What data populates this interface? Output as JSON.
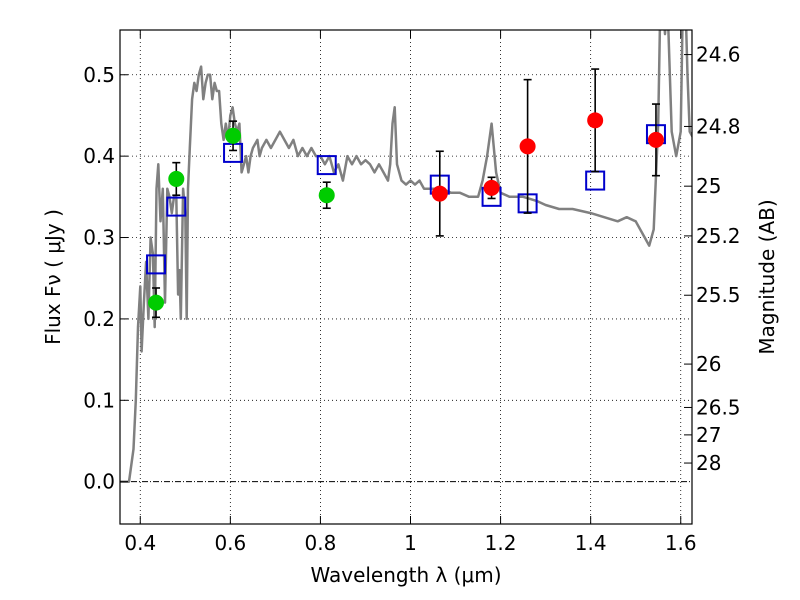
{
  "chart_data": {
    "type": "scatter",
    "xlabel": "Wavelength  λ (μm)",
    "ylabel": "Flux  Fν  ( μJy )",
    "y2label": "Magnitude (AB)",
    "xlim": [
      0.355,
      1.625
    ],
    "ylim": [
      -0.052,
      0.555
    ],
    "grid": true,
    "x_ticks": [
      0.4,
      0.6,
      0.8,
      1.0,
      1.2,
      1.4,
      1.6
    ],
    "x_tick_labels": [
      "0.4",
      "0.6",
      "0.8",
      "1",
      "1.2",
      "1.4",
      "1.6"
    ],
    "y_ticks": [
      0.0,
      0.1,
      0.2,
      0.3,
      0.4,
      0.5
    ],
    "y_tick_labels": [
      "0.0",
      "0.1",
      "0.2",
      "0.3",
      "0.4",
      "0.5"
    ],
    "mag_ticks": [
      {
        "label": "24.6",
        "flux": 0.5248
      },
      {
        "label": "24.8",
        "flux": 0.4365
      },
      {
        "label": "25",
        "flux": 0.3631
      },
      {
        "label": "25.2",
        "flux": 0.302
      },
      {
        "label": "25.5",
        "flux": 0.2291
      },
      {
        "label": "26",
        "flux": 0.1445
      },
      {
        "label": "26.5",
        "flux": 0.0912
      },
      {
        "label": "27",
        "flux": 0.0575
      },
      {
        "label": "28",
        "flux": 0.0229
      }
    ],
    "series": [
      {
        "name": "model spectrum",
        "kind": "line",
        "color": "#808080",
        "points": [
          [
            0.35,
            0
          ],
          [
            0.375,
            0
          ],
          [
            0.385,
            0.04
          ],
          [
            0.39,
            0.1
          ],
          [
            0.395,
            0.19
          ],
          [
            0.4,
            0.24
          ],
          [
            0.403,
            0.16
          ],
          [
            0.408,
            0.22
          ],
          [
            0.413,
            0.27
          ],
          [
            0.418,
            0.2
          ],
          [
            0.423,
            0.3
          ],
          [
            0.428,
            0.28
          ],
          [
            0.432,
            0.19
          ],
          [
            0.436,
            0.36
          ],
          [
            0.44,
            0.39
          ],
          [
            0.445,
            0.32
          ],
          [
            0.45,
            0.36
          ],
          [
            0.455,
            0.22
          ],
          [
            0.46,
            0.36
          ],
          [
            0.465,
            0.35
          ],
          [
            0.47,
            0.33
          ],
          [
            0.475,
            0.35
          ],
          [
            0.48,
            0.35
          ],
          [
            0.484,
            0.23
          ],
          [
            0.487,
            0.26
          ],
          [
            0.49,
            0.2
          ],
          [
            0.495,
            0.36
          ],
          [
            0.5,
            0.33
          ],
          [
            0.503,
            0.2
          ],
          [
            0.506,
            0.36
          ],
          [
            0.51,
            0.41
          ],
          [
            0.515,
            0.47
          ],
          [
            0.52,
            0.49
          ],
          [
            0.525,
            0.48
          ],
          [
            0.53,
            0.5
          ],
          [
            0.535,
            0.51
          ],
          [
            0.54,
            0.47
          ],
          [
            0.545,
            0.49
          ],
          [
            0.55,
            0.5
          ],
          [
            0.555,
            0.5
          ],
          [
            0.56,
            0.47
          ],
          [
            0.565,
            0.49
          ],
          [
            0.57,
            0.48
          ],
          [
            0.575,
            0.48
          ],
          [
            0.58,
            0.44
          ],
          [
            0.585,
            0.42
          ],
          [
            0.59,
            0.44
          ],
          [
            0.595,
            0.42
          ],
          [
            0.6,
            0.45
          ],
          [
            0.605,
            0.46
          ],
          [
            0.61,
            0.44
          ],
          [
            0.615,
            0.43
          ],
          [
            0.62,
            0.44
          ],
          [
            0.625,
            0.38
          ],
          [
            0.63,
            0.39
          ],
          [
            0.635,
            0.4
          ],
          [
            0.64,
            0.38
          ],
          [
            0.645,
            0.4
          ],
          [
            0.65,
            0.41
          ],
          [
            0.66,
            0.42
          ],
          [
            0.665,
            0.4
          ],
          [
            0.67,
            0.41
          ],
          [
            0.68,
            0.42
          ],
          [
            0.69,
            0.41
          ],
          [
            0.7,
            0.42
          ],
          [
            0.71,
            0.43
          ],
          [
            0.72,
            0.42
          ],
          [
            0.73,
            0.41
          ],
          [
            0.74,
            0.42
          ],
          [
            0.75,
            0.4
          ],
          [
            0.76,
            0.41
          ],
          [
            0.77,
            0.4
          ],
          [
            0.78,
            0.41
          ],
          [
            0.79,
            0.4
          ],
          [
            0.8,
            0.4
          ],
          [
            0.81,
            0.39
          ],
          [
            0.82,
            0.4
          ],
          [
            0.83,
            0.38
          ],
          [
            0.84,
            0.39
          ],
          [
            0.85,
            0.37
          ],
          [
            0.86,
            0.4
          ],
          [
            0.87,
            0.39
          ],
          [
            0.88,
            0.4
          ],
          [
            0.89,
            0.39
          ],
          [
            0.9,
            0.395
          ],
          [
            0.91,
            0.39
          ],
          [
            0.92,
            0.38
          ],
          [
            0.93,
            0.39
          ],
          [
            0.94,
            0.38
          ],
          [
            0.95,
            0.37
          ],
          [
            0.955,
            0.39
          ],
          [
            0.96,
            0.44
          ],
          [
            0.965,
            0.46
          ],
          [
            0.97,
            0.39
          ],
          [
            0.98,
            0.37
          ],
          [
            0.99,
            0.365
          ],
          [
            1.0,
            0.37
          ],
          [
            1.01,
            0.365
          ],
          [
            1.02,
            0.37
          ],
          [
            1.03,
            0.36
          ],
          [
            1.05,
            0.36
          ],
          [
            1.07,
            0.36
          ],
          [
            1.09,
            0.355
          ],
          [
            1.11,
            0.355
          ],
          [
            1.13,
            0.35
          ],
          [
            1.15,
            0.35
          ],
          [
            1.16,
            0.37
          ],
          [
            1.17,
            0.4
          ],
          [
            1.18,
            0.44
          ],
          [
            1.19,
            0.38
          ],
          [
            1.2,
            0.355
          ],
          [
            1.22,
            0.35
          ],
          [
            1.25,
            0.35
          ],
          [
            1.28,
            0.345
          ],
          [
            1.3,
            0.34
          ],
          [
            1.33,
            0.335
          ],
          [
            1.36,
            0.335
          ],
          [
            1.4,
            0.33
          ],
          [
            1.43,
            0.325
          ],
          [
            1.46,
            0.32
          ],
          [
            1.48,
            0.325
          ],
          [
            1.5,
            0.32
          ],
          [
            1.52,
            0.3
          ],
          [
            1.53,
            0.29
          ],
          [
            1.54,
            0.31
          ],
          [
            1.55,
            0.44
          ],
          [
            1.555,
            0.6
          ],
          [
            1.56,
            0.6
          ],
          [
            1.565,
            0.55
          ],
          [
            1.57,
            0.6
          ],
          [
            1.58,
            0.43
          ],
          [
            1.59,
            0.4
          ],
          [
            1.6,
            0.43
          ],
          [
            1.605,
            0.6
          ],
          [
            1.61,
            0.6
          ],
          [
            1.615,
            0.5
          ],
          [
            1.62,
            0.43
          ],
          [
            1.63,
            0.42
          ]
        ]
      },
      {
        "name": "green points",
        "kind": "points",
        "color": "#00cc00",
        "points": [
          {
            "x": 0.435,
            "y": 0.22,
            "err": 0.018
          },
          {
            "x": 0.48,
            "y": 0.372,
            "err": 0.02
          },
          {
            "x": 0.606,
            "y": 0.425,
            "err": 0.018
          },
          {
            "x": 0.814,
            "y": 0.352,
            "err": 0.016
          }
        ]
      },
      {
        "name": "red points",
        "kind": "points",
        "color": "#ff0000",
        "points": [
          {
            "x": 1.065,
            "y": 0.354,
            "err": 0.052
          },
          {
            "x": 1.18,
            "y": 0.361,
            "err": 0.013
          },
          {
            "x": 1.26,
            "y": 0.412,
            "err": 0.082
          },
          {
            "x": 1.41,
            "y": 0.444,
            "err": 0.063
          },
          {
            "x": 1.545,
            "y": 0.42,
            "err": 0.044
          }
        ]
      },
      {
        "name": "blue squares",
        "kind": "squares",
        "color": "#0000cc",
        "points": [
          {
            "x": 0.435,
            "y": 0.267
          },
          {
            "x": 0.48,
            "y": 0.338
          },
          {
            "x": 0.606,
            "y": 0.404
          },
          {
            "x": 0.814,
            "y": 0.389
          },
          {
            "x": 1.065,
            "y": 0.365
          },
          {
            "x": 1.18,
            "y": 0.35
          },
          {
            "x": 1.26,
            "y": 0.342
          },
          {
            "x": 1.41,
            "y": 0.37
          },
          {
            "x": 1.545,
            "y": 0.427
          }
        ]
      }
    ]
  }
}
